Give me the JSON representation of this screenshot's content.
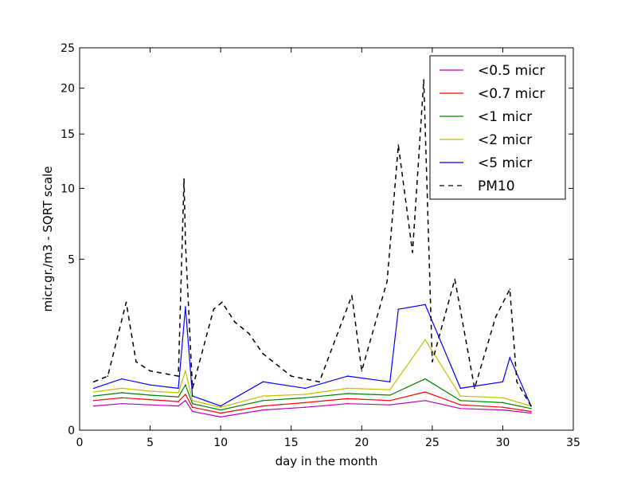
{
  "chart_data": {
    "type": "line",
    "title": "",
    "xlabel": "day in the month",
    "ylabel": "micr.gr./m3 - SQRT scale",
    "xlim": [
      0,
      35
    ],
    "ylim": [
      0,
      25
    ],
    "y_scale": "sqrt",
    "xticks": [
      0,
      5,
      10,
      15,
      20,
      25,
      30,
      35
    ],
    "yticks": [
      0,
      5,
      10,
      15,
      20,
      25
    ],
    "grid": false,
    "legend_position": "top-right",
    "series": [
      {
        "name": "<0.5 micr",
        "color": "#bf00bf",
        "dash": "solid",
        "x": [
          1,
          3,
          5,
          7,
          7.5,
          8,
          10,
          13,
          16,
          19,
          22,
          24.5,
          27,
          30,
          32
        ],
        "values": [
          0.1,
          0.12,
          0.11,
          0.1,
          0.15,
          0.06,
          0.03,
          0.07,
          0.09,
          0.12,
          0.11,
          0.15,
          0.08,
          0.07,
          0.05
        ]
      },
      {
        "name": "<0.7 micr",
        "color": "#ff0000",
        "dash": "solid",
        "x": [
          1,
          3,
          5,
          7,
          7.5,
          8,
          10,
          13,
          16,
          19,
          22,
          24.5,
          27,
          30,
          32
        ],
        "values": [
          0.15,
          0.18,
          0.16,
          0.14,
          0.22,
          0.09,
          0.05,
          0.1,
          0.13,
          0.17,
          0.15,
          0.25,
          0.11,
          0.09,
          0.06
        ]
      },
      {
        "name": "<1 micr",
        "color": "#008000",
        "dash": "solid",
        "x": [
          1,
          3,
          5,
          7,
          7.5,
          8,
          10,
          13,
          16,
          19,
          22,
          24.5,
          27,
          30,
          32
        ],
        "values": [
          0.2,
          0.24,
          0.21,
          0.19,
          0.35,
          0.12,
          0.07,
          0.15,
          0.18,
          0.23,
          0.21,
          0.45,
          0.15,
          0.13,
          0.08
        ]
      },
      {
        "name": "<2 micr",
        "color": "#bfbf00",
        "dash": "solid",
        "x": [
          1,
          3,
          5,
          7,
          7.5,
          8,
          10,
          13,
          16,
          19,
          22,
          24.5,
          27,
          30,
          32
        ],
        "values": [
          0.25,
          0.3,
          0.26,
          0.24,
          0.6,
          0.15,
          0.09,
          0.2,
          0.22,
          0.3,
          0.28,
          1.4,
          0.2,
          0.18,
          0.1
        ]
      },
      {
        "name": "<5 micr",
        "color": "#0000ff",
        "dash": "solid",
        "x": [
          1,
          3,
          5,
          7,
          7.5,
          8,
          10,
          13,
          16,
          19,
          22,
          22.6,
          24.5,
          27,
          30,
          30.5,
          32
        ],
        "values": [
          0.3,
          0.45,
          0.35,
          0.3,
          2.6,
          0.2,
          0.1,
          0.4,
          0.3,
          0.5,
          0.4,
          2.5,
          2.7,
          0.3,
          0.4,
          0.9,
          0.1
        ]
      },
      {
        "name": "PM10",
        "color": "#000000",
        "dash": "dashed",
        "x": [
          1,
          2,
          3.3,
          4,
          5,
          7,
          7.4,
          7.5,
          8,
          9.5,
          10.1,
          11,
          12,
          13,
          15,
          17,
          19.3,
          20,
          21.8,
          22.6,
          23.6,
          24.4,
          25,
          26.6,
          28,
          29.5,
          30.5,
          31,
          32
        ],
        "values": [
          0.4,
          0.5,
          2.8,
          0.8,
          0.6,
          0.5,
          10.8,
          6.0,
          0.3,
          2.5,
          2.8,
          2.0,
          1.6,
          1.0,
          0.5,
          0.4,
          3.1,
          0.6,
          3.8,
          13.9,
          5.4,
          21.0,
          0.8,
          3.9,
          0.3,
          2.2,
          3.4,
          0.4,
          0.1
        ]
      }
    ]
  }
}
